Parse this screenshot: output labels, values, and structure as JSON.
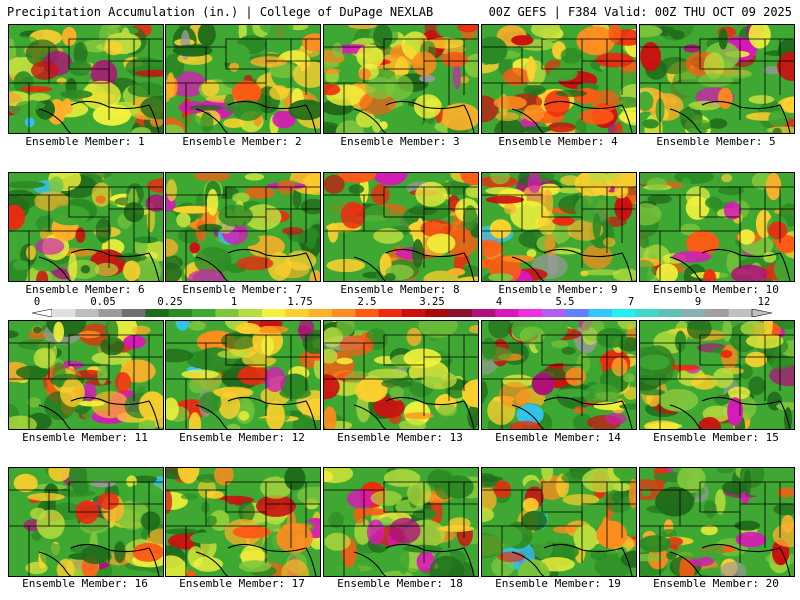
{
  "header": {
    "title": "Precipitation Accumulation (in.) | College of DuPage NEXLAB",
    "run_info": "00Z GEFS | F384 Valid: 00Z THU OCT 09 2025"
  },
  "members": [
    {
      "label": "Ensemble Member: 1"
    },
    {
      "label": "Ensemble Member: 2"
    },
    {
      "label": "Ensemble Member: 3"
    },
    {
      "label": "Ensemble Member: 4"
    },
    {
      "label": "Ensemble Member: 5"
    },
    {
      "label": "Ensemble Member: 6"
    },
    {
      "label": "Ensemble Member: 7"
    },
    {
      "label": "Ensemble Member: 8"
    },
    {
      "label": "Ensemble Member: 9"
    },
    {
      "label": "Ensemble Member: 10"
    },
    {
      "label": "Ensemble Member: 11"
    },
    {
      "label": "Ensemble Member: 12"
    },
    {
      "label": "Ensemble Member: 13"
    },
    {
      "label": "Ensemble Member: 14"
    },
    {
      "label": "Ensemble Member: 15"
    },
    {
      "label": "Ensemble Member: 16"
    },
    {
      "label": "Ensemble Member: 17"
    },
    {
      "label": "Ensemble Member: 18"
    },
    {
      "label": "Ensemble Member: 19"
    },
    {
      "label": "Ensemble Member: 20"
    }
  ],
  "colorbar": {
    "labels": [
      "0",
      "0.05",
      "0.25",
      "1",
      "1.75",
      "2.5",
      "3.25",
      "4",
      "5.5",
      "7",
      "9",
      "12"
    ],
    "colors": [
      "#e0e0e0",
      "#bdbdbd",
      "#9a9a9a",
      "#6f6f6f",
      "#1f6b1a",
      "#2c8a24",
      "#3ea832",
      "#7ec63c",
      "#b8dd3e",
      "#f2f23c",
      "#ffd02e",
      "#ffb02a",
      "#ff8c1e",
      "#ff5a14",
      "#f0280e",
      "#cc1010",
      "#a80a0a",
      "#8a1030",
      "#b0107a",
      "#d818b8",
      "#f030e0",
      "#b060f0",
      "#6080ff",
      "#30c8ff",
      "#20f0f0",
      "#40d8c8",
      "#60c0b8",
      "#8ab0b0",
      "#a0a0a0",
      "#c0c0c0"
    ]
  },
  "field_colors": {
    "low": "#2c8a24",
    "mid": "#f2f23c",
    "high": "#ff5a14",
    "extreme": "#d818b8",
    "outline": "#000000"
  }
}
